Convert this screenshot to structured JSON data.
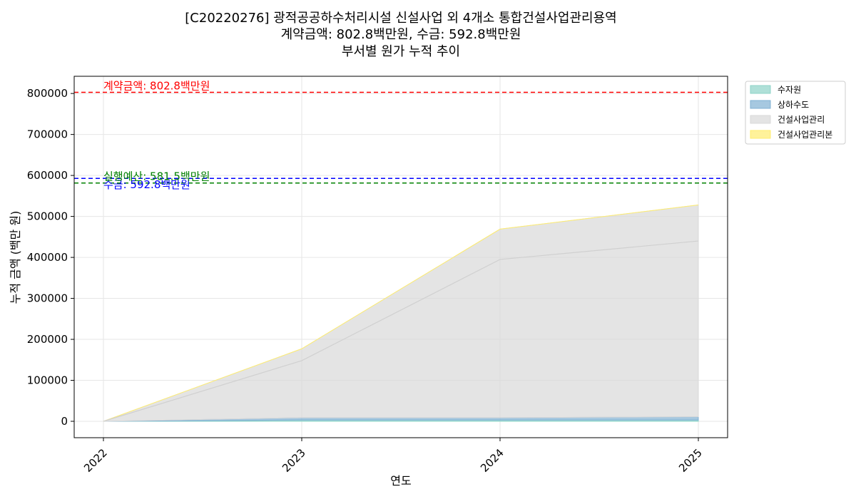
{
  "chart_data": {
    "type": "area",
    "stacked": true,
    "title_lines": [
      "[C20220276] 광적공공하수처리시설 신설사업 외 4개소 통합건설사업관리용역",
      "계약금액: 802.8백만원, 수금: 592.8백만원",
      "부서별 원가 누적 추이"
    ],
    "xlabel": "연도",
    "ylabel": "누적 금액 (백만 원)",
    "x": [
      "2022",
      "2023",
      "2024",
      "2025"
    ],
    "ylim": [
      -40000,
      842000
    ],
    "yticks": [
      "0",
      "100000",
      "200000",
      "300000",
      "400000",
      "500000",
      "600000",
      "700000",
      "800000"
    ],
    "yticks_values": [
      0,
      100000,
      200000,
      300000,
      400000,
      500000,
      600000,
      700000,
      800000
    ],
    "grid": true,
    "legend_position": "outside-top-right",
    "series": [
      {
        "name": "수자원",
        "color": "#8dd3c7",
        "values": [
          0,
          3000,
          3000,
          3000
        ]
      },
      {
        "name": "상하수도",
        "color": "#80b1d3",
        "values": [
          0,
          6000,
          6000,
          8000
        ]
      },
      {
        "name": "건설사업관리",
        "color": "#d9d9d9",
        "values": [
          0,
          168000,
          460000,
          517000
        ]
      },
      {
        "name": "건설사업관리본",
        "color": "#ffed6f",
        "values": [
          0,
          0,
          0,
          0
        ]
      }
    ],
    "overlay_line": {
      "color": "#d0d0d0",
      "values": [
        0,
        148000,
        395000,
        440000
      ]
    },
    "reference_lines": [
      {
        "value": 802800,
        "color": "#ff0000",
        "label": "계약금액: 802.8백만원"
      },
      {
        "value": 592800,
        "color": "#0000ff",
        "label": "수금: 592.8백만원"
      },
      {
        "value": 581500,
        "color": "#008000",
        "label": "실행예산: 581.5백만원"
      }
    ]
  }
}
